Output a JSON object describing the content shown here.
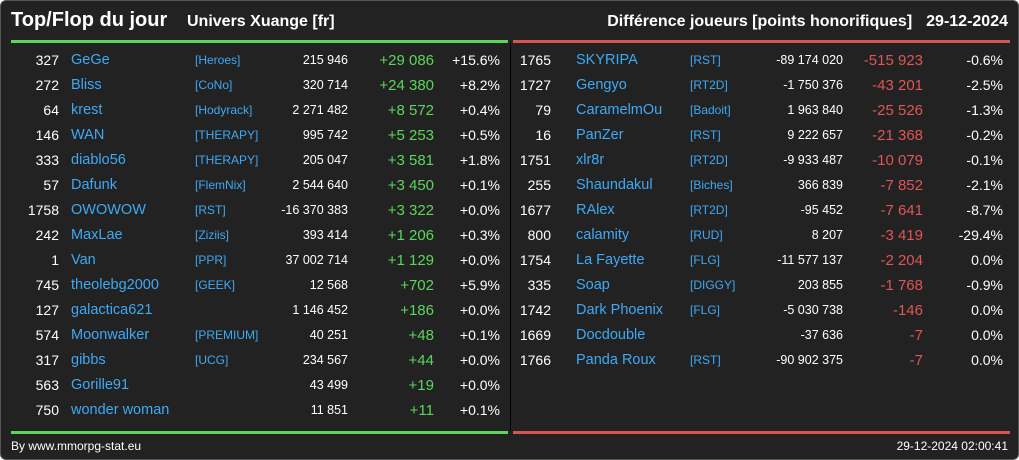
{
  "header": {
    "title": "Top/Flop du jour",
    "subtitle": "Univers Xuange [fr]",
    "right_label": "Différence joueurs [points honorifiques]",
    "date": "29-12-2024"
  },
  "colors": {
    "top": "#5bd65b",
    "flop": "#e05555",
    "name": "#3fa9f5",
    "background": "#222222"
  },
  "top": [
    {
      "rank": "327",
      "name": "GeGe",
      "guild": "[Heroes]",
      "score": "215 946",
      "diff": "+29 086",
      "pct": "+15.6%"
    },
    {
      "rank": "272",
      "name": "Bliss",
      "guild": "[CoNo]",
      "score": "320 714",
      "diff": "+24 380",
      "pct": "+8.2%"
    },
    {
      "rank": "64",
      "name": "krest",
      "guild": "[Hodyrack]",
      "score": "2 271 482",
      "diff": "+8 572",
      "pct": "+0.4%"
    },
    {
      "rank": "146",
      "name": "WAN",
      "guild": "[THERAPY]",
      "score": "995 742",
      "diff": "+5 253",
      "pct": "+0.5%"
    },
    {
      "rank": "333",
      "name": "diablo56",
      "guild": "[THERAPY]",
      "score": "205 047",
      "diff": "+3 581",
      "pct": "+1.8%"
    },
    {
      "rank": "57",
      "name": "Dafunk",
      "guild": "[FlemNix]",
      "score": "2 544 640",
      "diff": "+3 450",
      "pct": "+0.1%"
    },
    {
      "rank": "1758",
      "name": "OWOWOW",
      "guild": "[RST]",
      "score": "-16 370 383",
      "diff": "+3 322",
      "pct": "+0.0%"
    },
    {
      "rank": "242",
      "name": "MaxLae",
      "guild": "[Ziziis]",
      "score": "393 414",
      "diff": "+1 206",
      "pct": "+0.3%"
    },
    {
      "rank": "1",
      "name": "Van",
      "guild": "[PPR]",
      "score": "37 002 714",
      "diff": "+1 129",
      "pct": "+0.0%"
    },
    {
      "rank": "745",
      "name": "theolebg2000",
      "guild": "[GEEK]",
      "score": "12 568",
      "diff": "+702",
      "pct": "+5.9%"
    },
    {
      "rank": "127",
      "name": "galactica621",
      "guild": "",
      "score": "1 146 452",
      "diff": "+186",
      "pct": "+0.0%"
    },
    {
      "rank": "574",
      "name": "Moonwalker",
      "guild": "[PREMIUM]",
      "score": "40 251",
      "diff": "+48",
      "pct": "+0.1%"
    },
    {
      "rank": "317",
      "name": "gibbs",
      "guild": "[UCG]",
      "score": "234 567",
      "diff": "+44",
      "pct": "+0.0%"
    },
    {
      "rank": "563",
      "name": "Gorille91",
      "guild": "",
      "score": "43 499",
      "diff": "+19",
      "pct": "+0.0%"
    },
    {
      "rank": "750",
      "name": "wonder woman",
      "guild": "",
      "score": "11 851",
      "diff": "+11",
      "pct": "+0.1%"
    }
  ],
  "flop": [
    {
      "rank": "1765",
      "name": "SKYRIPA",
      "guild": "[RST]",
      "score": "-89 174 020",
      "diff": "-515 923",
      "pct": "-0.6%"
    },
    {
      "rank": "1727",
      "name": "Gengyo",
      "guild": "[RT2D]",
      "score": "-1 750 376",
      "diff": "-43 201",
      "pct": "-2.5%"
    },
    {
      "rank": "79",
      "name": "CaramelmOu",
      "guild": "[Badoit]",
      "score": "1 963 840",
      "diff": "-25 526",
      "pct": "-1.3%"
    },
    {
      "rank": "16",
      "name": "PanZer",
      "guild": "[RST]",
      "score": "9 222 657",
      "diff": "-21 368",
      "pct": "-0.2%"
    },
    {
      "rank": "1751",
      "name": "xlr8r",
      "guild": "[RT2D]",
      "score": "-9 933 487",
      "diff": "-10 079",
      "pct": "-0.1%"
    },
    {
      "rank": "255",
      "name": "Shaundakul",
      "guild": "[Biches]",
      "score": "366 839",
      "diff": "-7 852",
      "pct": "-2.1%"
    },
    {
      "rank": "1677",
      "name": "RAlex",
      "guild": "[RT2D]",
      "score": "-95 452",
      "diff": "-7 641",
      "pct": "-8.7%"
    },
    {
      "rank": "800",
      "name": "calamity",
      "guild": "[RUD]",
      "score": "8 207",
      "diff": "-3 419",
      "pct": "-29.4%"
    },
    {
      "rank": "1754",
      "name": "La Fayette",
      "guild": "[FLG]",
      "score": "-11 577 137",
      "diff": "-2 204",
      "pct": "0.0%"
    },
    {
      "rank": "335",
      "name": "Soap",
      "guild": "[DIGGY]",
      "score": "203 855",
      "diff": "-1 768",
      "pct": "-0.9%"
    },
    {
      "rank": "1742",
      "name": "Dark Phoenix",
      "guild": "[FLG]",
      "score": "-5 030 738",
      "diff": "-146",
      "pct": "0.0%"
    },
    {
      "rank": "1669",
      "name": "Docdouble",
      "guild": "",
      "score": "-37 636",
      "diff": "-7",
      "pct": "0.0%"
    },
    {
      "rank": "1766",
      "name": "Panda Roux",
      "guild": "[RST]",
      "score": "-90 902 375",
      "diff": "-7",
      "pct": "0.0%"
    }
  ],
  "footer": {
    "credit": "By www.mmorpg-stat.eu",
    "timestamp": "29-12-2024 02:00:41"
  }
}
